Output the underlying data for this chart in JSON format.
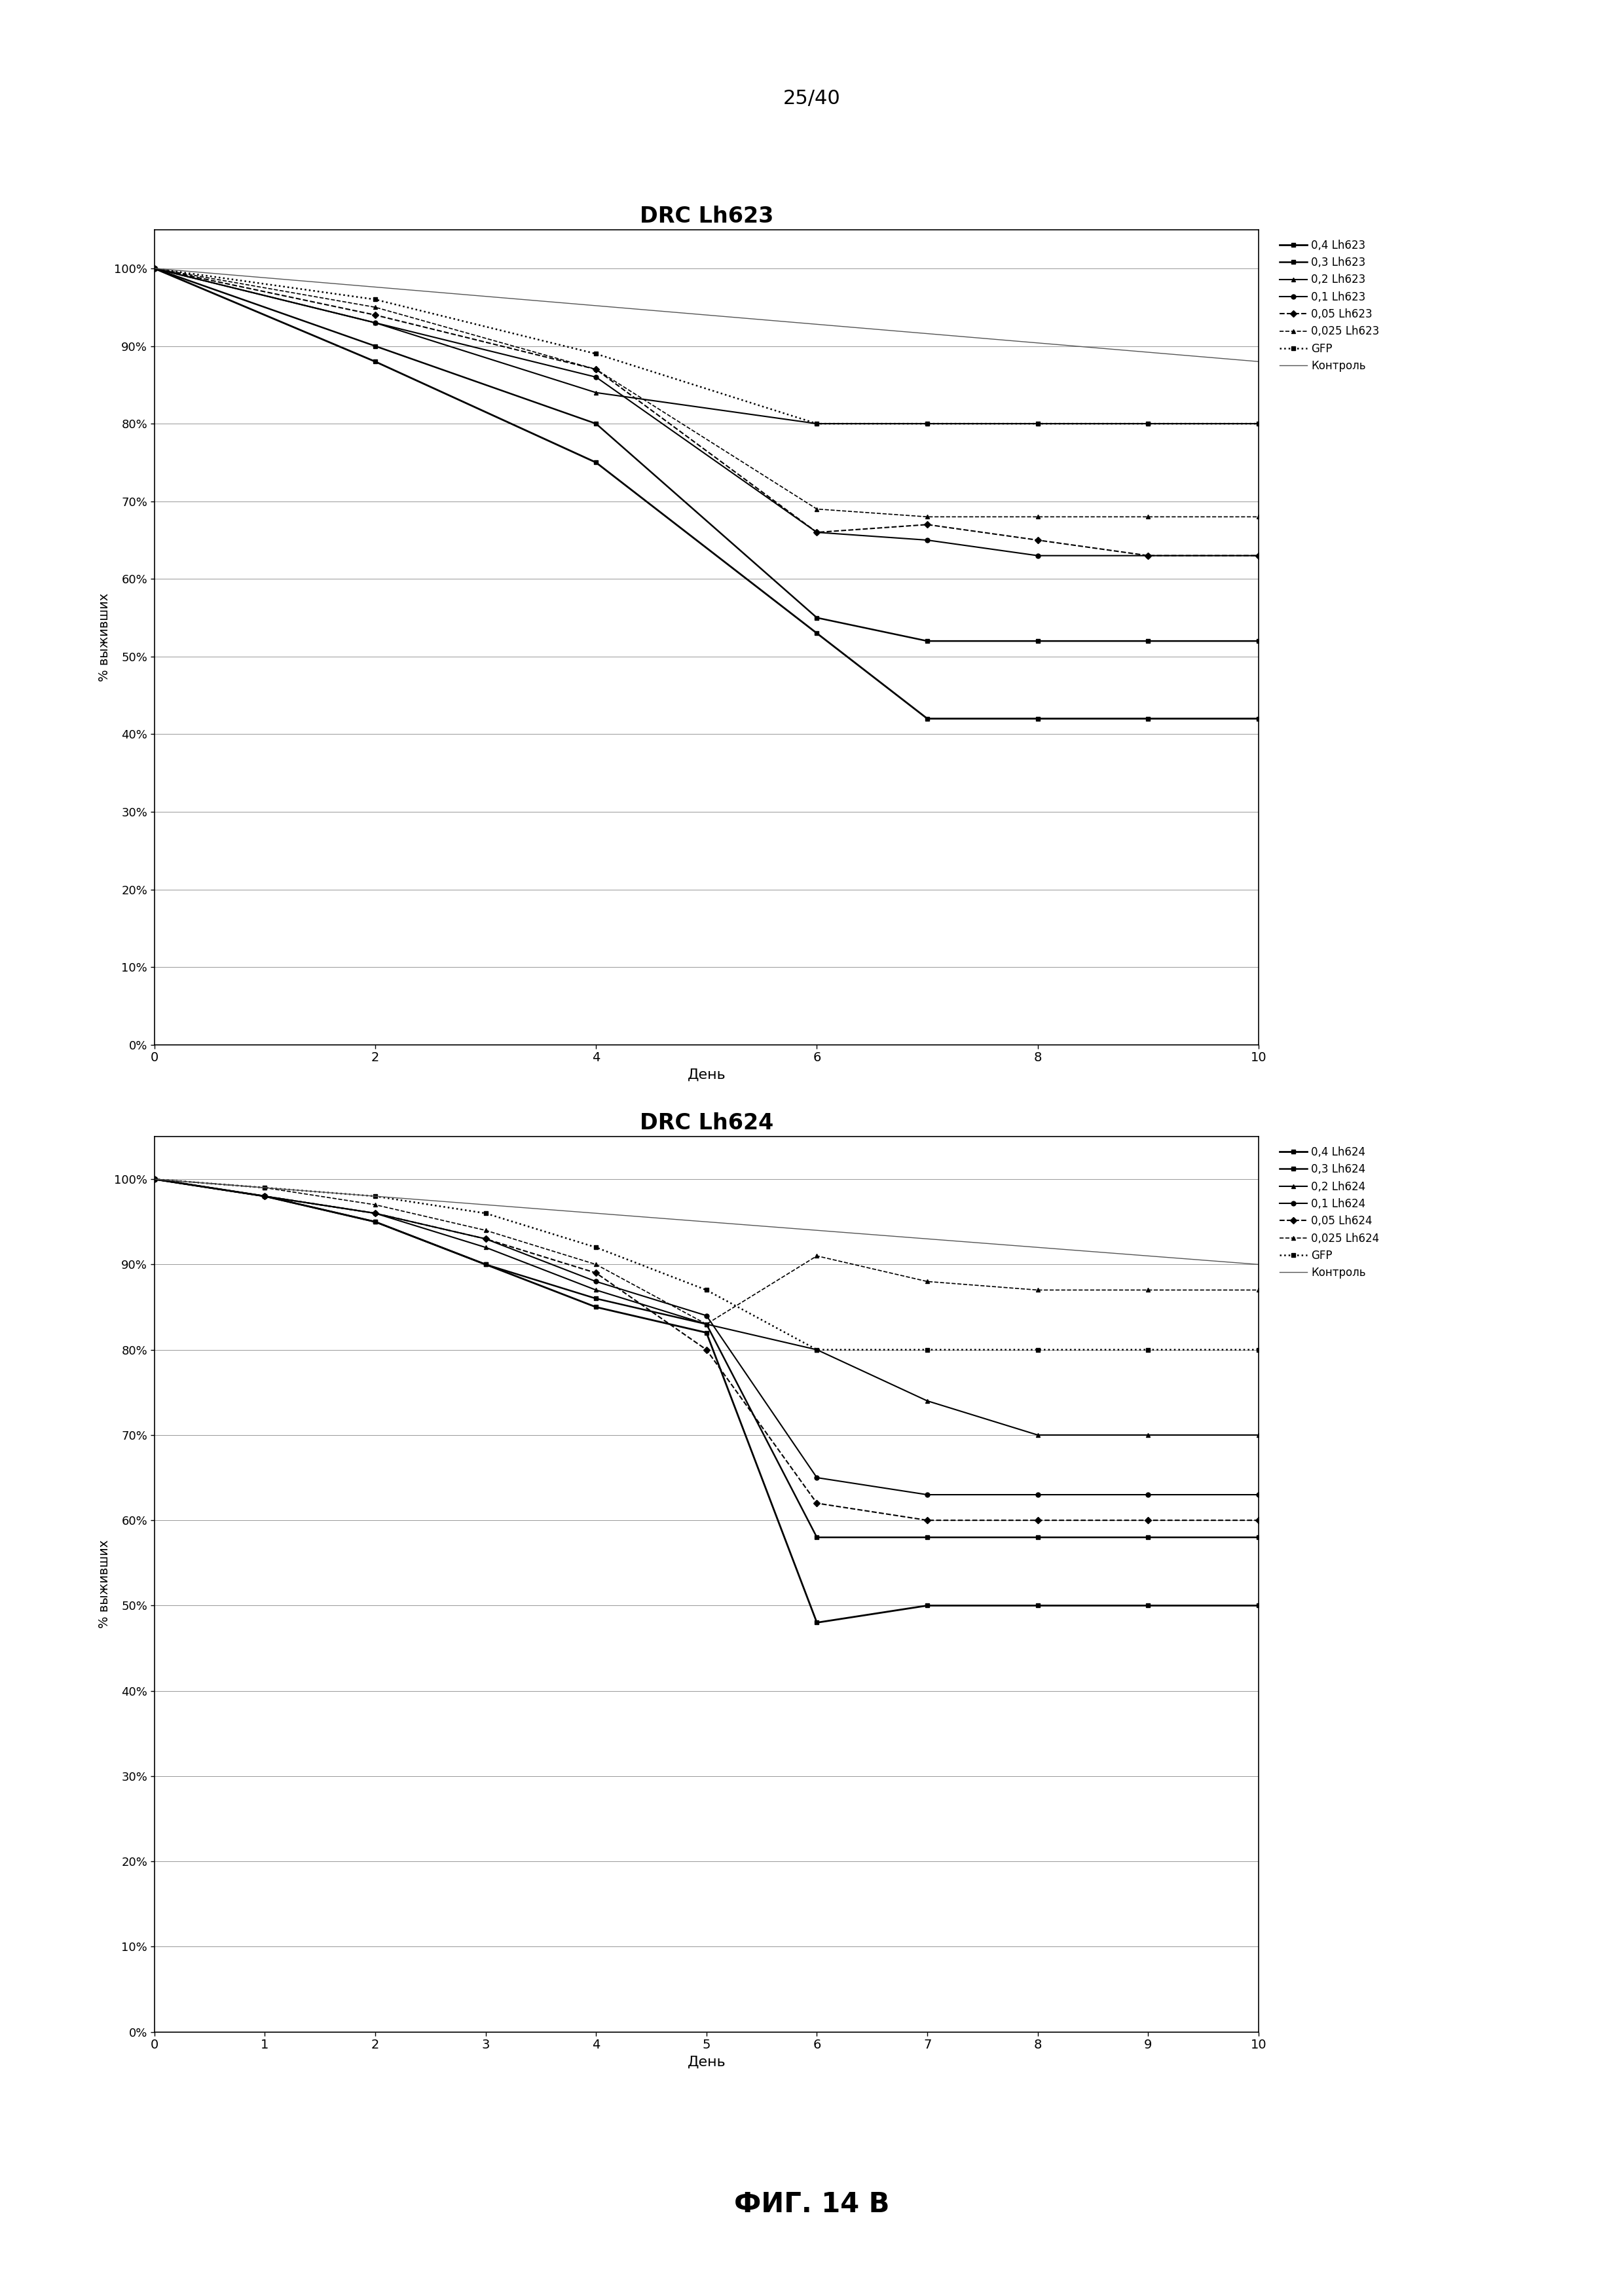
{
  "page_header": "25/40",
  "fig_caption": "ФИГ. 14 В",
  "background_color": "#ffffff",
  "chart1": {
    "title": "DRC Lh623",
    "xlabel": "День",
    "ylabel": "% выживших",
    "xlim": [
      0,
      10
    ],
    "ylim": [
      0,
      1.05
    ],
    "yticks": [
      0,
      0.1,
      0.2,
      0.3,
      0.4,
      0.5,
      0.6,
      0.7,
      0.8,
      0.9,
      1.0
    ],
    "ytick_labels": [
      "0%",
      "10%",
      "20%",
      "30%",
      "40%",
      "50%",
      "60%",
      "70%",
      "80%",
      "90%",
      "100%"
    ],
    "xticks": [
      0,
      2,
      4,
      6,
      8,
      10
    ],
    "series": [
      {
        "label": "0,4 Lh623",
        "x": [
          0,
          2,
          4,
          6,
          7,
          8,
          9,
          10
        ],
        "y": [
          1.0,
          0.88,
          0.75,
          0.53,
          0.42,
          0.42,
          0.42,
          0.42
        ],
        "linestyle": "-",
        "marker": "s",
        "markersize": 5,
        "color": "#000000",
        "linewidth": 2.0
      },
      {
        "label": "0,3 Lh623",
        "x": [
          0,
          2,
          4,
          6,
          7,
          8,
          9,
          10
        ],
        "y": [
          1.0,
          0.9,
          0.8,
          0.55,
          0.52,
          0.52,
          0.52,
          0.52
        ],
        "linestyle": "-",
        "marker": "s",
        "markersize": 5,
        "color": "#000000",
        "linewidth": 1.8
      },
      {
        "label": "0,2 Lh623",
        "x": [
          0,
          2,
          4,
          6,
          7,
          8,
          9,
          10
        ],
        "y": [
          1.0,
          0.93,
          0.84,
          0.8,
          0.8,
          0.8,
          0.8,
          0.8
        ],
        "linestyle": "-",
        "marker": "^",
        "markersize": 5,
        "color": "#000000",
        "linewidth": 1.5
      },
      {
        "label": "0,1 Lh623",
        "x": [
          0,
          2,
          4,
          6,
          7,
          8,
          9,
          10
        ],
        "y": [
          1.0,
          0.93,
          0.86,
          0.66,
          0.65,
          0.63,
          0.63,
          0.63
        ],
        "linestyle": "-",
        "marker": "o",
        "markersize": 5,
        "color": "#000000",
        "linewidth": 1.5,
        "dotted_prefix": true
      },
      {
        "label": "0,05 Lh623",
        "x": [
          0,
          2,
          4,
          6,
          7,
          8,
          9,
          10
        ],
        "y": [
          1.0,
          0.94,
          0.87,
          0.66,
          0.67,
          0.65,
          0.63,
          0.63
        ],
        "linestyle": "--",
        "marker": "D",
        "markersize": 5,
        "color": "#000000",
        "linewidth": 1.5,
        "dotted_prefix": true
      },
      {
        "label": "0,025 Lh623",
        "x": [
          0,
          2,
          4,
          6,
          7,
          8,
          9,
          10
        ],
        "y": [
          1.0,
          0.95,
          0.87,
          0.69,
          0.68,
          0.68,
          0.68,
          0.68
        ],
        "linestyle": "--",
        "marker": "^",
        "markersize": 5,
        "color": "#000000",
        "linewidth": 1.2
      },
      {
        "label": "GFP",
        "x": [
          0,
          2,
          4,
          6,
          7,
          8,
          9,
          10
        ],
        "y": [
          1.0,
          0.96,
          0.89,
          0.8,
          0.8,
          0.8,
          0.8,
          0.8
        ],
        "linestyle": ":",
        "marker": "s",
        "markersize": 5,
        "color": "#000000",
        "linewidth": 1.8
      },
      {
        "label": "Контроль",
        "x": [
          0,
          10
        ],
        "y": [
          1.0,
          0.88
        ],
        "linestyle": "-",
        "marker": null,
        "markersize": 0,
        "color": "#555555",
        "linewidth": 1.0
      }
    ]
  },
  "chart2": {
    "title": "DRC Lh624",
    "xlabel": "День",
    "ylabel": "% выживших",
    "xlim": [
      0,
      10
    ],
    "ylim": [
      0,
      1.05
    ],
    "yticks": [
      0,
      0.1,
      0.2,
      0.3,
      0.4,
      0.5,
      0.6,
      0.7,
      0.8,
      0.9,
      1.0
    ],
    "ytick_labels": [
      "0%",
      "10%",
      "20%",
      "30%",
      "40%",
      "50%",
      "60%",
      "70%",
      "80%",
      "90%",
      "100%"
    ],
    "xticks": [
      0,
      1,
      2,
      3,
      4,
      5,
      6,
      7,
      8,
      9,
      10
    ],
    "series": [
      {
        "label": "0,4 Lh624",
        "x": [
          0,
          1,
          2,
          3,
          4,
          5,
          6,
          7,
          8,
          9,
          10
        ],
        "y": [
          1.0,
          0.98,
          0.95,
          0.9,
          0.85,
          0.82,
          0.48,
          0.5,
          0.5,
          0.5,
          0.5
        ],
        "linestyle": "-",
        "marker": "s",
        "markersize": 5,
        "color": "#000000",
        "linewidth": 2.0
      },
      {
        "label": "0,3 Lh624",
        "x": [
          0,
          1,
          2,
          3,
          4,
          5,
          6,
          7,
          8,
          9,
          10
        ],
        "y": [
          1.0,
          0.98,
          0.95,
          0.9,
          0.86,
          0.83,
          0.58,
          0.58,
          0.58,
          0.58,
          0.58
        ],
        "linestyle": "-",
        "marker": "s",
        "markersize": 5,
        "color": "#000000",
        "linewidth": 1.8
      },
      {
        "label": "0,2 Lh624",
        "x": [
          0,
          1,
          2,
          3,
          4,
          5,
          6,
          7,
          8,
          9,
          10
        ],
        "y": [
          1.0,
          0.98,
          0.96,
          0.92,
          0.87,
          0.83,
          0.8,
          0.74,
          0.7,
          0.7,
          0.7
        ],
        "linestyle": "-",
        "marker": "^",
        "markersize": 5,
        "color": "#000000",
        "linewidth": 1.5
      },
      {
        "label": "0,1 Lh624",
        "x": [
          0,
          1,
          2,
          3,
          4,
          5,
          6,
          7,
          8,
          9,
          10
        ],
        "y": [
          1.0,
          0.98,
          0.96,
          0.93,
          0.88,
          0.84,
          0.65,
          0.63,
          0.63,
          0.63,
          0.63
        ],
        "linestyle": "-",
        "marker": "o",
        "markersize": 5,
        "color": "#000000",
        "linewidth": 1.5,
        "dotted_prefix": true
      },
      {
        "label": "0,05 Lh624",
        "x": [
          0,
          1,
          2,
          3,
          4,
          5,
          6,
          7,
          8,
          9,
          10
        ],
        "y": [
          1.0,
          0.98,
          0.96,
          0.93,
          0.89,
          0.8,
          0.62,
          0.6,
          0.6,
          0.6,
          0.6
        ],
        "linestyle": "--",
        "marker": "D",
        "markersize": 5,
        "color": "#000000",
        "linewidth": 1.5,
        "dotted_prefix": true
      },
      {
        "label": "0,025 Lh624",
        "x": [
          0,
          1,
          2,
          3,
          4,
          5,
          6,
          7,
          8,
          9,
          10
        ],
        "y": [
          1.0,
          0.99,
          0.97,
          0.94,
          0.9,
          0.83,
          0.91,
          0.88,
          0.87,
          0.87,
          0.87
        ],
        "linestyle": "--",
        "marker": "^",
        "markersize": 5,
        "color": "#000000",
        "linewidth": 1.2
      },
      {
        "label": "GFP",
        "x": [
          0,
          1,
          2,
          3,
          4,
          5,
          6,
          7,
          8,
          9,
          10
        ],
        "y": [
          1.0,
          0.99,
          0.98,
          0.96,
          0.92,
          0.87,
          0.8,
          0.8,
          0.8,
          0.8,
          0.8
        ],
        "linestyle": ":",
        "marker": "s",
        "markersize": 5,
        "color": "#000000",
        "linewidth": 1.8
      },
      {
        "label": "Контроль",
        "x": [
          0,
          10
        ],
        "y": [
          1.0,
          0.9
        ],
        "linestyle": "-",
        "marker": null,
        "markersize": 0,
        "color": "#555555",
        "linewidth": 1.0
      }
    ]
  }
}
